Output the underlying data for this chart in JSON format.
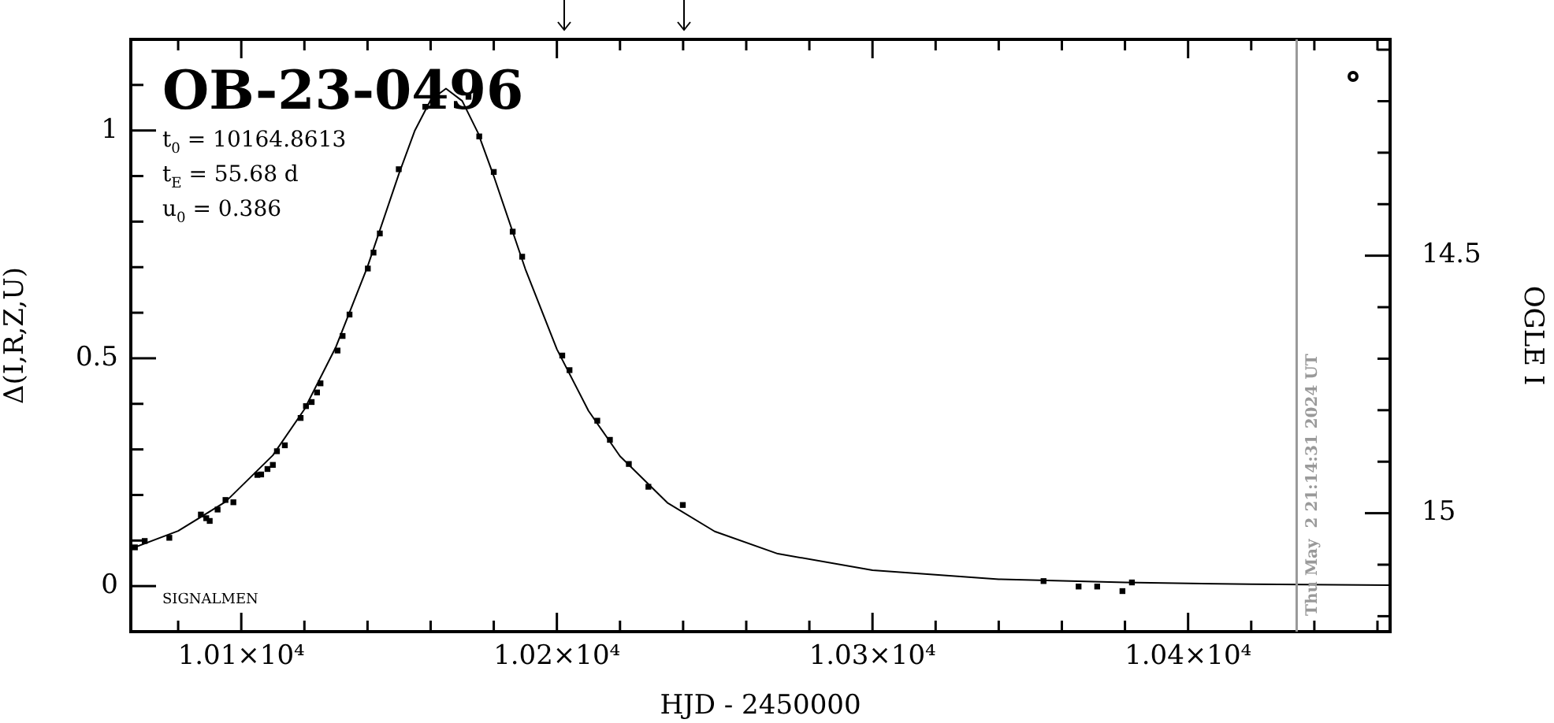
{
  "chart_data": {
    "type": "scatter",
    "title": "OB-23-0496",
    "xlabel": "HJD - 2450000",
    "ylabel": "Δ(I,R,Z,U)",
    "y2label": "OGLE I",
    "annotations": [
      "t$_{0}$ = 10164.8613",
      "t$_{E}$ = 55.68 d",
      "u$_{0}$ = 0.386",
      "SIGNALMEN",
      "Thu May  2 21:14:31 2024 UT"
    ],
    "xlim": [
      10065,
      10464
    ],
    "xticks": [
      {
        "value": 10080,
        "label": null
      },
      {
        "value": 10100,
        "label": "1.01×10⁴"
      },
      {
        "value": 10120,
        "label": null
      },
      {
        "value": 10140,
        "label": null
      },
      {
        "value": 10160,
        "label": null
      },
      {
        "value": 10180,
        "label": null
      },
      {
        "value": 10200,
        "label": "1.02×10⁴"
      },
      {
        "value": 10220,
        "label": null
      },
      {
        "value": 10240,
        "label": null
      },
      {
        "value": 10260,
        "label": null
      },
      {
        "value": 10280,
        "label": null
      },
      {
        "value": 10300,
        "label": "1.03×10⁴"
      },
      {
        "value": 10320,
        "label": null
      },
      {
        "value": 10340,
        "label": null
      },
      {
        "value": 10360,
        "label": null
      },
      {
        "value": 10380,
        "label": null
      },
      {
        "value": 10400,
        "label": "1.04×10⁴"
      },
      {
        "value": 10420,
        "label": null
      },
      {
        "value": 10440,
        "label": null
      },
      {
        "value": 10460,
        "label": null
      }
    ],
    "ylim": [
      -0.1,
      1.2
    ],
    "yticks": [
      {
        "value": -0.1,
        "label": null
      },
      0,
      {
        "value": 0.1,
        "label": null
      },
      {
        "value": 0.2,
        "label": null
      },
      {
        "value": 0.3,
        "label": null
      },
      {
        "value": 0.4,
        "label": null
      },
      0.5,
      {
        "value": 0.6,
        "label": null
      },
      {
        "value": 0.7,
        "label": null
      },
      {
        "value": 0.8,
        "label": null
      },
      {
        "value": 0.9,
        "label": null
      },
      1,
      {
        "value": 1.1,
        "label": null
      }
    ],
    "y2lim": [
      15.23,
      14.08
    ],
    "y2ticks": [
      {
        "value": 15.2,
        "label": null
      },
      {
        "value": 15.1,
        "label": null
      },
      15,
      {
        "value": 14.9,
        "label": null
      },
      {
        "value": 14.8,
        "label": null
      },
      {
        "value": 14.7,
        "label": null
      },
      {
        "value": 14.6,
        "label": null
      },
      14.5,
      {
        "value": 14.4,
        "label": null
      },
      {
        "value": 14.3,
        "label": null
      },
      {
        "value": 14.2,
        "label": null
      },
      {
        "value": 14.1,
        "label": null
      }
    ],
    "ref_lines": [
      {
        "axis": "x",
        "value": 10434.4,
        "color": "#999999"
      }
    ],
    "grid": false,
    "legend": false,
    "marker": "square",
    "series": [
      {
        "color": "#000000",
        "x": [
          10066.3,
          10069.4,
          10077.2,
          10087.2,
          10088.9,
          10090.0,
          10092.5,
          10095.0,
          10097.5,
          10105.1,
          10106.3,
          10108.3,
          10110.0,
          10111.3,
          10113.8,
          10118.8,
          10120.5,
          10122.3,
          10124.0,
          10125.1,
          10130.5,
          10132.1,
          10134.3,
          10140.1,
          10141.9,
          10143.9,
          10149.9,
          10158.3,
          10172.0,
          10175.4,
          10180.0,
          10186.0,
          10189.0,
          10201.7,
          10204.0,
          10212.8,
          10216.8,
          10222.8,
          10229.0,
          10239.9,
          10354.2,
          10365.3,
          10371.2,
          10379.2,
          10382.2
        ],
        "values": [
          0.085,
          0.099,
          0.106,
          0.157,
          0.149,
          0.143,
          0.168,
          0.189,
          0.184,
          0.244,
          0.245,
          0.257,
          0.266,
          0.296,
          0.309,
          0.369,
          0.395,
          0.404,
          0.425,
          0.445,
          0.517,
          0.549,
          0.596,
          0.697,
          0.732,
          0.774,
          0.915,
          1.052,
          1.074,
          0.987,
          0.909,
          0.778,
          0.723,
          0.506,
          0.474,
          0.363,
          0.321,
          0.268,
          0.218,
          0.178,
          0.011,
          -0.001,
          -0.001,
          -0.011,
          0.008
        ]
      },
      {
        "type": "line",
        "color": "#000000",
        "marker": "none",
        "x": [
          10065,
          10080,
          10095,
          10110,
          10120,
          10130,
          10140,
          10150,
          10155,
          10160,
          10164.86,
          10170,
          10175,
          10180,
          10190,
          10200,
          10210,
          10220,
          10235,
          10250,
          10270,
          10300,
          10340,
          10380,
          10420,
          10464
        ],
        "values": [
          0.082,
          0.121,
          0.185,
          0.287,
          0.388,
          0.525,
          0.701,
          0.906,
          1.0,
          1.067,
          1.092,
          1.065,
          0.995,
          0.9,
          0.696,
          0.52,
          0.385,
          0.285,
          0.183,
          0.12,
          0.071,
          0.035,
          0.015,
          0.008,
          0.004,
          0.002
        ]
      }
    ]
  }
}
